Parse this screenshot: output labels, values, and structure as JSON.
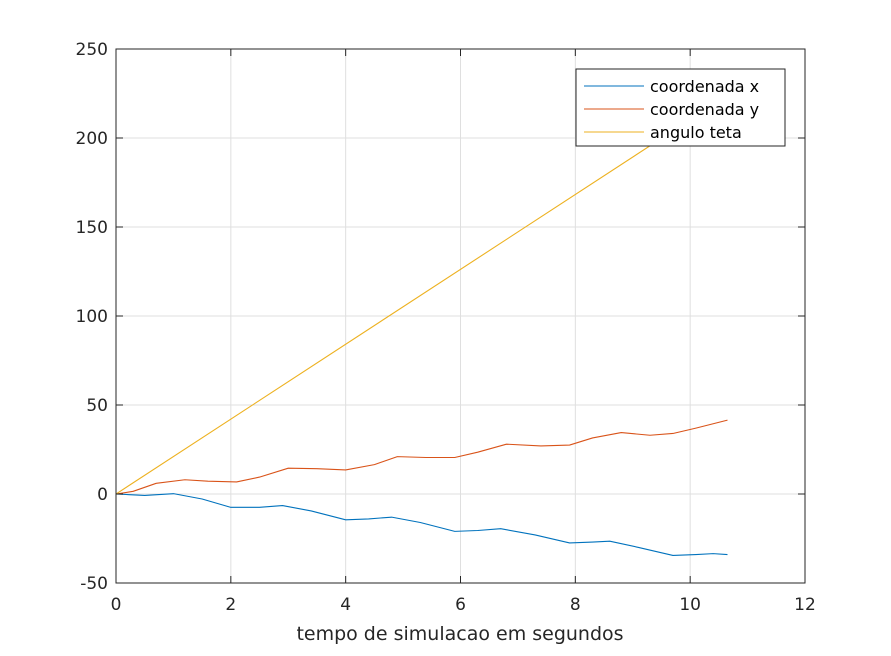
{
  "chart_data": {
    "type": "line",
    "title": "",
    "xlabel": "tempo de simulacao em segundos",
    "ylabel": "",
    "xlim": [
      0,
      12
    ],
    "ylim": [
      -50,
      250
    ],
    "xticks": [
      0,
      2,
      4,
      6,
      8,
      10,
      12
    ],
    "yticks": [
      -50,
      0,
      50,
      100,
      150,
      200,
      250
    ],
    "xtick_labels": [
      "0",
      "2",
      "4",
      "6",
      "8",
      "10",
      "12"
    ],
    "ytick_labels": [
      "-50",
      "0",
      "50",
      "100",
      "150",
      "200",
      "250"
    ],
    "grid": true,
    "legend_position": "top-right",
    "series": [
      {
        "name": "coordenada x",
        "color": "#0072bd",
        "x": [
          0,
          0.5,
          1.0,
          1.5,
          2.0,
          2.5,
          2.9,
          3.4,
          4.0,
          4.4,
          4.8,
          5.3,
          5.9,
          6.3,
          6.7,
          7.3,
          7.9,
          8.3,
          8.6,
          9.1,
          9.7,
          10.1,
          10.4,
          10.65
        ],
        "y": [
          0,
          -0.8,
          0.2,
          -2.8,
          -7.5,
          -7.5,
          -6.5,
          -9.5,
          -14.5,
          -14,
          -13,
          -16,
          -21,
          -20.5,
          -19.5,
          -23,
          -27.5,
          -27,
          -26.5,
          -30,
          -34.5,
          -34,
          -33.5,
          -34
        ]
      },
      {
        "name": "coordenada y",
        "color": "#d95319",
        "x": [
          0,
          0.3,
          0.7,
          1.2,
          1.6,
          2.1,
          2.5,
          3.0,
          3.5,
          4.0,
          4.5,
          4.9,
          5.4,
          5.9,
          6.3,
          6.8,
          7.4,
          7.9,
          8.3,
          8.8,
          9.3,
          9.7,
          10.1,
          10.65
        ],
        "y": [
          0,
          1.5,
          6,
          8,
          7.2,
          6.8,
          9.5,
          14.5,
          14.2,
          13.5,
          16.5,
          21,
          20.5,
          20.5,
          23.5,
          28,
          27,
          27.5,
          31.5,
          34.5,
          33,
          34,
          37,
          41.5
        ]
      },
      {
        "name": "angulo teta",
        "color": "#edb120",
        "x": [
          0,
          10.65
        ],
        "y": [
          0,
          224
        ]
      }
    ]
  }
}
